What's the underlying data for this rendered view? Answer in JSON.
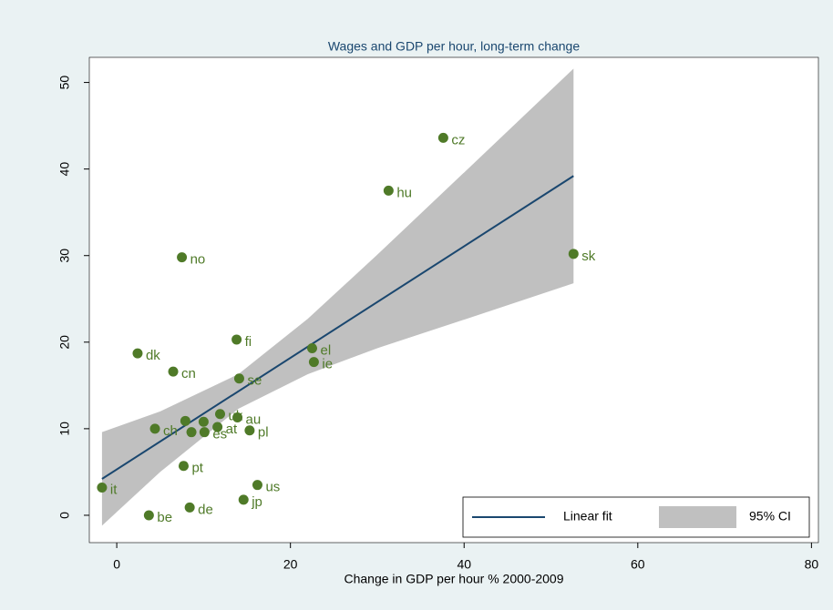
{
  "chart_data": {
    "type": "scatter",
    "title": "Wages and GDP per hour, long-term change",
    "x_label": "Change in GDP per hour % 2000-2009",
    "xlim": [
      -3.16,
      80.8
    ],
    "ylim": [
      -3.16,
      52.9
    ],
    "xticks": [
      0,
      20,
      40,
      60,
      80
    ],
    "yticks": [
      0,
      10,
      20,
      30,
      40,
      50
    ],
    "points": {
      "color": "#4f7a28",
      "x": [
        -1.7,
        3.7,
        8.4,
        7.7,
        14.6,
        16.2,
        4.4,
        2.4,
        6.5,
        7.5,
        13.8,
        14.1,
        22.5,
        22.7,
        31.3,
        37.6,
        52.6,
        15.3,
        7.9,
        8.6,
        10.0,
        10.1,
        11.6,
        11.9,
        13.9
      ],
      "y": [
        3.2,
        0.0,
        0.9,
        5.7,
        1.8,
        3.5,
        10.0,
        18.7,
        16.6,
        29.8,
        20.3,
        15.8,
        19.3,
        17.7,
        37.5,
        43.6,
        30.2,
        9.8,
        10.9,
        9.6,
        10.8,
        9.6,
        10.2,
        11.7,
        11.3
      ],
      "labels": [
        "it",
        "be",
        "de",
        "pt",
        "jp",
        "us",
        "ch",
        "dk",
        "cn",
        "no",
        "fi",
        "se",
        "el",
        "ie",
        "hu",
        "cz",
        "sk",
        "pl",
        null,
        null,
        null,
        "es",
        "at",
        "uk",
        "au"
      ]
    },
    "fit": {
      "name": "Linear fit",
      "color": "#1a476f",
      "x": [
        -1.7,
        52.6
      ],
      "values": [
        4.2,
        39.2
      ]
    },
    "ci": {
      "name": "95% CI",
      "color": "#c0c0c0",
      "x": [
        -1.7,
        5,
        14,
        22,
        30,
        40,
        52.6
      ],
      "upper": [
        9.6,
        12.0,
        16.3,
        22.7,
        30.1,
        39.6,
        51.6
      ],
      "lower": [
        -1.2,
        5.0,
        12.3,
        16.3,
        19.3,
        22.6,
        26.8
      ]
    },
    "legend": "bottom-right"
  }
}
